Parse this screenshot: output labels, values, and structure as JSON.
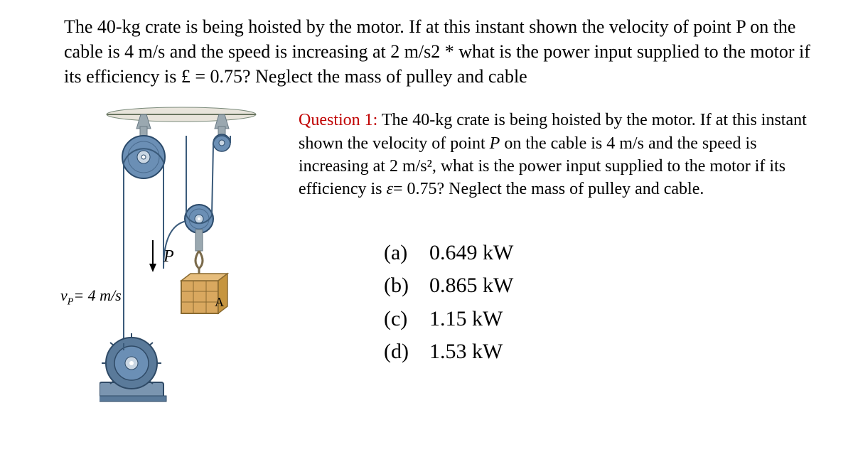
{
  "top_question": "The 40-kg crate is being hoisted by the motor. If at this instant shown the velocity of point P on the cable is 4 m/s and the speed is increasing at 2 m/s2 * what is the power input supplied to the motor if its efficiency is £ = 0.75? Neglect the mass of pulley and cable",
  "question1": {
    "label": "Question 1:",
    "text_before_P": " The 40-kg crate is being hoisted by the motor. If at this instant shown the velocity of point ",
    "P": "P",
    "text_mid": " on the cable is 4 m/s and the speed is increasing at 2 m/s²,  what is the power input supplied to the motor if its efficiency is ",
    "eps": "ε",
    "text_after": "= 0.75? Neglect the mass of pulley and cable."
  },
  "answers": [
    {
      "letter": "(a)",
      "value": "0.649 kW"
    },
    {
      "letter": "(b)",
      "value": "0.865 kW"
    },
    {
      "letter": "(c)",
      "value": "1.15 kW"
    },
    {
      "letter": "(d)",
      "value": "1.53 kW"
    }
  ],
  "diagram": {
    "vp_html": "v<sub>P</sub>= 4 m/s",
    "p_label": "P",
    "a_label": "A",
    "colors": {
      "ceiling_fill": "#e8e4db",
      "ceiling_line": "#7a8a7a",
      "bracket": "#9aa8b0",
      "bracket_dark": "#6a7a85",
      "pulley_body": "#6b8fb5",
      "pulley_rim": "#2b4a6a",
      "pulley_hub": "#c9d6e3",
      "pulley_center": "#ffffff",
      "cable": "#3a5a7a",
      "hook": "#7a6a4a",
      "crate_fill": "#d9a85f",
      "crate_edge": "#8a6a30",
      "motor_body": "#5a7a9a",
      "motor_dark": "#2f4a66",
      "motor_base": "#7a95b0",
      "arrow": "#000000"
    }
  }
}
